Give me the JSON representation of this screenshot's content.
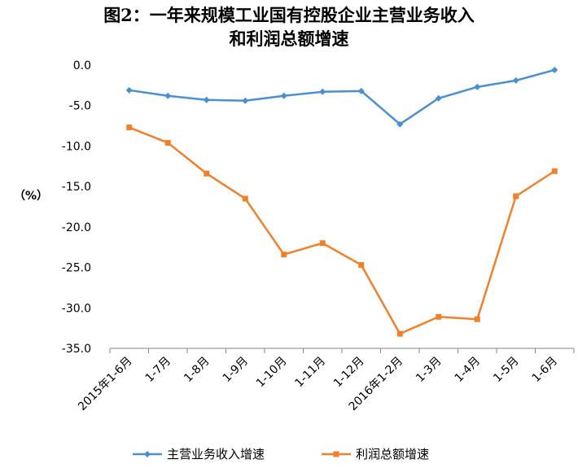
{
  "title": {
    "line1": "图2：一年来规模工业国有控股企业主营业务收入",
    "line2": "和利润总额增速"
  },
  "chart_data": {
    "type": "line",
    "ylabel": "（%）",
    "xlabel": "",
    "ylim": [
      -35,
      0
    ],
    "ytick_step": 5,
    "yticks": [
      "0.0",
      "-5.0",
      "-10.0",
      "-15.0",
      "-20.0",
      "-25.0",
      "-30.0",
      "-35.0"
    ],
    "grid": false,
    "legend_position": "bottom",
    "categories": [
      "2015年1-6月",
      "1-7月",
      "1-8月",
      "1-9月",
      "1-10月",
      "1-11月",
      "1-12月",
      "2016年1-2月",
      "1-3月",
      "1-4月",
      "1-5月",
      "1-6月"
    ],
    "series": [
      {
        "name": "主营业务收入增速",
        "color": "#4A8FD0",
        "marker": "diamond",
        "values": [
          -3.1,
          -3.8,
          -4.3,
          -4.4,
          -3.8,
          -3.3,
          -3.2,
          -7.3,
          -4.1,
          -2.7,
          -1.9,
          -0.6
        ]
      },
      {
        "name": "利润总额增速",
        "color": "#F0802A",
        "marker": "square",
        "values": [
          -7.7,
          -9.6,
          -13.4,
          -16.5,
          -23.4,
          -22.0,
          -24.7,
          -33.2,
          -31.1,
          -31.4,
          -16.2,
          -13.1
        ]
      }
    ]
  }
}
